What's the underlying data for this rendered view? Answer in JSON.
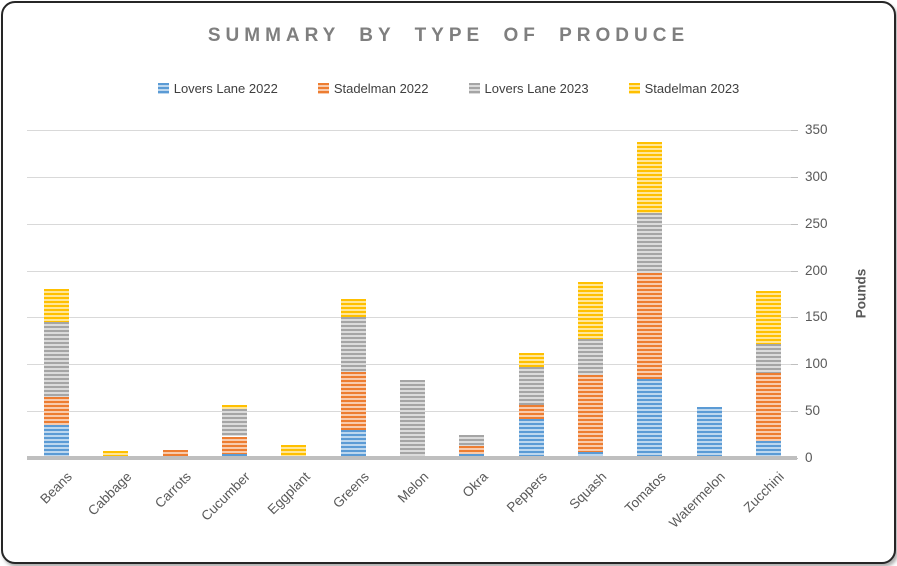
{
  "title": "SUMMARY BY TYPE OF PRODUCE",
  "chart_data": {
    "type": "bar",
    "stacked": true,
    "title": "SUMMARY BY TYPE OF PRODUCE",
    "categories": [
      "Beans",
      "Cabbage",
      "Carrots",
      "Cucumber",
      "Eggplant",
      "Greens",
      "Melon",
      "Okra",
      "Peppers",
      "Squash",
      "Tomatos",
      "Watermelon",
      "Zucchini"
    ],
    "series": [
      {
        "name": "Lovers Lane 2022",
        "color": "#5B9BD5",
        "stripe_color": "#BDD7EE",
        "values": [
          35,
          0,
          0,
          4,
          0,
          30,
          0,
          4,
          42,
          6,
          84,
          54,
          18
        ]
      },
      {
        "name": "Stadelman 2022",
        "color": "#ED7D31",
        "stripe_color": "#F8CBAD",
        "values": [
          30,
          0,
          9,
          19,
          2,
          62,
          0,
          9,
          15,
          83,
          113,
          0,
          73
        ]
      },
      {
        "name": "Lovers Lane 2023",
        "color": "#A5A5A5",
        "stripe_color": "#DBDBDB",
        "values": [
          80,
          0,
          0,
          29,
          0,
          58,
          83,
          12,
          40,
          38,
          64,
          0,
          31
        ]
      },
      {
        "name": "Stadelman 2023",
        "color": "#FFC000",
        "stripe_color": "#FFE699",
        "values": [
          35,
          8,
          0,
          5,
          12,
          20,
          0,
          0,
          15,
          61,
          76,
          0,
          56
        ]
      }
    ],
    "xlabel": "",
    "ylabel": "Pounds",
    "ylim": [
      0,
      350
    ],
    "yticks": [
      350,
      300,
      250,
      200,
      150,
      100,
      50,
      0
    ],
    "grid": true,
    "legend_position": "top",
    "colors": {
      "title_text": "#7F7F7F",
      "axis_text": "#595959",
      "legend_text": "#3F3F3F",
      "gridline": "#D9D9D9",
      "axis_line": "#BFBFBF"
    }
  }
}
